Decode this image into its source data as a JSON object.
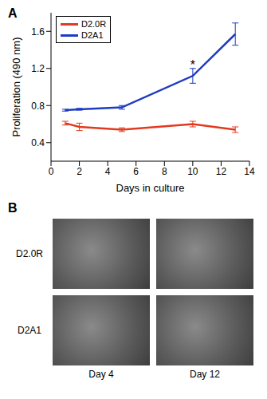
{
  "chart_data": {
    "type": "line",
    "panel": "A",
    "xlabel": "Days in culture",
    "ylabel": "Proliferation (490 nm)",
    "x": [
      1,
      2,
      5,
      10,
      13
    ],
    "xlim": [
      0,
      14
    ],
    "xticks": [
      0,
      2,
      4,
      6,
      8,
      10,
      12,
      14
    ],
    "ylim": [
      0.2,
      1.8
    ],
    "yticks": [
      0.4,
      0.8,
      1.2,
      1.6
    ],
    "grid": false,
    "legend": "upper left",
    "series": [
      {
        "name": "D2.0R",
        "color": "#e23a1e",
        "values": [
          0.61,
          0.57,
          0.54,
          0.6,
          0.54
        ],
        "error": [
          0.02,
          0.04,
          0.02,
          0.03,
          0.03
        ]
      },
      {
        "name": "D2A1",
        "color": "#1f3cc4",
        "values": [
          0.75,
          0.76,
          0.78,
          1.12,
          1.57
        ],
        "error": [
          0.01,
          0.01,
          0.02,
          0.08,
          0.12
        ]
      }
    ],
    "annotations": [
      {
        "text": "*",
        "x": 10,
        "y": 1.24
      }
    ]
  },
  "image_panel": {
    "panel": "B",
    "rows": [
      "D2.0R",
      "D2A1"
    ],
    "columns": [
      "Day 4",
      "Day 12"
    ]
  }
}
